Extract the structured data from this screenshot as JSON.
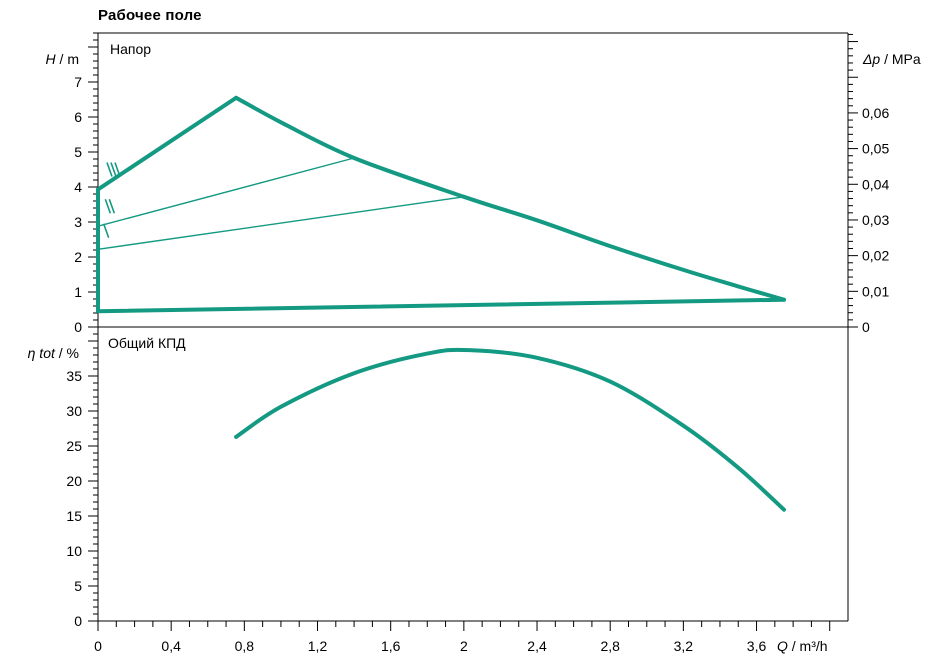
{
  "title": "Рабочее поле",
  "colors": {
    "curve": "#149a82",
    "axis": "#000000"
  },
  "chart_data": [
    {
      "type": "line",
      "panel_label": "Напор",
      "x_axis": {
        "symbol": "Q",
        "unit": "/ m³/h",
        "range": [
          0,
          4.1
        ],
        "ticks": [
          0,
          0.4,
          0.8,
          1.2,
          1.6,
          2,
          2.4,
          2.8,
          3.2,
          3.6
        ],
        "tick_labels": [
          "0",
          "0,4",
          "0,8",
          "1,2",
          "1,6",
          "2",
          "2,4",
          "2,8",
          "3,2",
          "3,6"
        ]
      },
      "y_axis_left": {
        "symbol": "H",
        "unit": "/ m",
        "range": [
          0,
          8.4
        ],
        "ticks": [
          0,
          1,
          2,
          3,
          4,
          5,
          6,
          7
        ],
        "tick_labels": [
          "0",
          "1",
          "2",
          "3",
          "4",
          "5",
          "6",
          "7"
        ]
      },
      "y_axis_right": {
        "symbol": "Δp",
        "unit": "/ MPa",
        "range": [
          0,
          0.0824
        ],
        "ticks": [
          0,
          0.01,
          0.02,
          0.03,
          0.04,
          0.05,
          0.06
        ],
        "tick_labels": [
          "0",
          "0,01",
          "0,02",
          "0,03",
          "0,04",
          "0,05",
          "0,06"
        ]
      },
      "series": [
        {
          "name": "III",
          "style": "thick",
          "x": [
            0,
            0.755,
            1.0,
            1.4,
            2.0,
            2.4,
            2.8,
            3.2,
            3.5,
            3.75
          ],
          "y": [
            3.93,
            6.55,
            5.85,
            4.83,
            3.72,
            3.05,
            2.31,
            1.63,
            1.16,
            0.78
          ]
        },
        {
          "name": "II",
          "style": "thin",
          "x": [
            0,
            1.4
          ],
          "y": [
            2.88,
            4.83
          ]
        },
        {
          "name": "I",
          "style": "thin",
          "x": [
            0,
            2.0
          ],
          "y": [
            2.22,
            3.72
          ]
        },
        {
          "name": "",
          "style": "thick",
          "x": [
            0,
            0,
            3.75
          ],
          "y": [
            3.93,
            0.45,
            0.78
          ]
        }
      ],
      "curve_labels": [
        {
          "text": "III",
          "x": 0.06,
          "y": 4.5
        },
        {
          "text": "II",
          "x": 0.04,
          "y": 3.45
        },
        {
          "text": "I",
          "x": 0.02,
          "y": 2.75
        }
      ]
    },
    {
      "type": "line",
      "panel_label": "Общий КПД",
      "x_axis": {
        "symbol": "Q",
        "unit": "/ m³/h",
        "range": [
          0,
          4.1
        ],
        "ticks": [
          0,
          0.4,
          0.8,
          1.2,
          1.6,
          2,
          2.4,
          2.8,
          3.2,
          3.6
        ],
        "tick_labels": [
          "0",
          "0,4",
          "0,8",
          "1,2",
          "1,6",
          "2",
          "2,4",
          "2,8",
          "3,2",
          "3,6"
        ]
      },
      "y_axis_left": {
        "symbol": "η tot",
        "unit": "/ %",
        "range": [
          0,
          42
        ],
        "ticks": [
          0,
          5,
          10,
          15,
          20,
          25,
          30,
          35
        ],
        "tick_labels": [
          "0",
          "5",
          "10",
          "15",
          "20",
          "25",
          "30",
          "35"
        ]
      },
      "series": [
        {
          "name": "",
          "style": "thick",
          "x": [
            0.755,
            1.0,
            1.4,
            1.8,
            2.03,
            2.4,
            2.8,
            3.2,
            3.5,
            3.75
          ],
          "y": [
            26.3,
            30.6,
            35.4,
            38.2,
            38.7,
            37.6,
            34.2,
            27.9,
            21.9,
            15.9
          ]
        }
      ]
    }
  ]
}
